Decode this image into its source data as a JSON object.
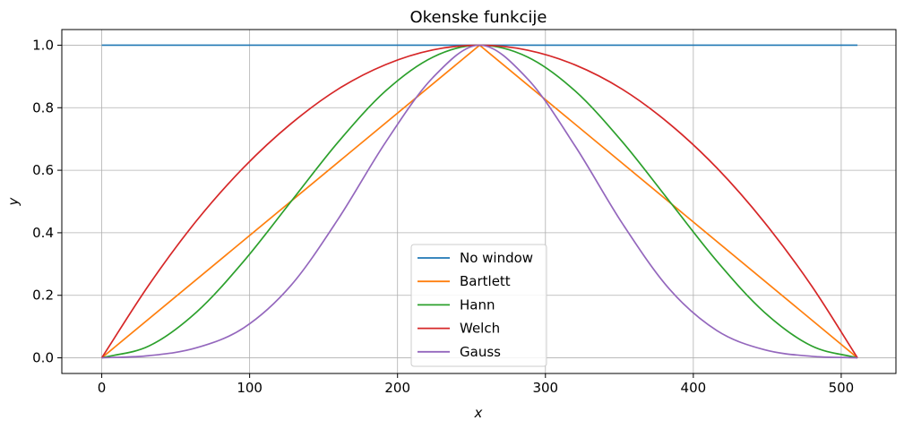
{
  "chart_data": {
    "type": "line",
    "title": "Okenske funkcije",
    "xlabel": "x",
    "ylabel": "y",
    "xlim": [
      -27,
      537
    ],
    "ylim": [
      -0.05,
      1.05
    ],
    "xticks": [
      0,
      100,
      200,
      300,
      400,
      500
    ],
    "yticks": [
      0.0,
      0.2,
      0.4,
      0.6,
      0.8,
      1.0
    ],
    "xtick_labels": [
      "0",
      "100",
      "200",
      "300",
      "400",
      "500"
    ],
    "ytick_labels": [
      "0.0",
      "0.2",
      "0.4",
      "0.6",
      "0.8",
      "1.0"
    ],
    "grid": true,
    "legend_position": "lower center",
    "n_points": 512,
    "series": [
      {
        "name": "No window",
        "color": "#1f77b4",
        "x": [
          0,
          511
        ],
        "y": [
          1.0,
          1.0
        ]
      },
      {
        "name": "Bartlett",
        "color": "#ff7f0e",
        "x": [
          0,
          255.5,
          511
        ],
        "y": [
          0.0,
          1.0,
          0.0
        ]
      },
      {
        "name": "Hann",
        "color": "#2ca02c",
        "x": [
          0,
          32,
          64,
          96,
          128,
          160,
          192,
          224,
          255.5,
          288,
          320,
          352,
          384,
          416,
          448,
          480,
          511
        ],
        "y": [
          0.0,
          0.038,
          0.146,
          0.309,
          0.5,
          0.691,
          0.854,
          0.962,
          1.0,
          0.962,
          0.854,
          0.691,
          0.5,
          0.309,
          0.146,
          0.038,
          0.0
        ]
      },
      {
        "name": "Welch",
        "color": "#d62728",
        "x": [
          0,
          32,
          64,
          96,
          128,
          160,
          192,
          224,
          255.5,
          288,
          320,
          352,
          384,
          416,
          448,
          480,
          511
        ],
        "y": [
          0.0,
          0.234,
          0.438,
          0.609,
          0.749,
          0.86,
          0.938,
          0.985,
          1.0,
          0.984,
          0.937,
          0.859,
          0.748,
          0.607,
          0.434,
          0.23,
          0.0
        ]
      },
      {
        "name": "Gauss",
        "color": "#9467bd",
        "x": [
          0,
          32,
          64,
          96,
          128,
          160,
          192,
          224,
          255.5,
          288,
          320,
          352,
          384,
          416,
          448,
          480,
          511
        ],
        "y": [
          0.0,
          0.007,
          0.032,
          0.096,
          0.232,
          0.445,
          0.69,
          0.897,
          1.0,
          0.892,
          0.678,
          0.43,
          0.219,
          0.087,
          0.026,
          0.005,
          0.0
        ]
      }
    ]
  },
  "styling": {
    "grid_color": "#b0b0b0",
    "axes_color": "#000000",
    "legend_border": "#cccccc"
  }
}
